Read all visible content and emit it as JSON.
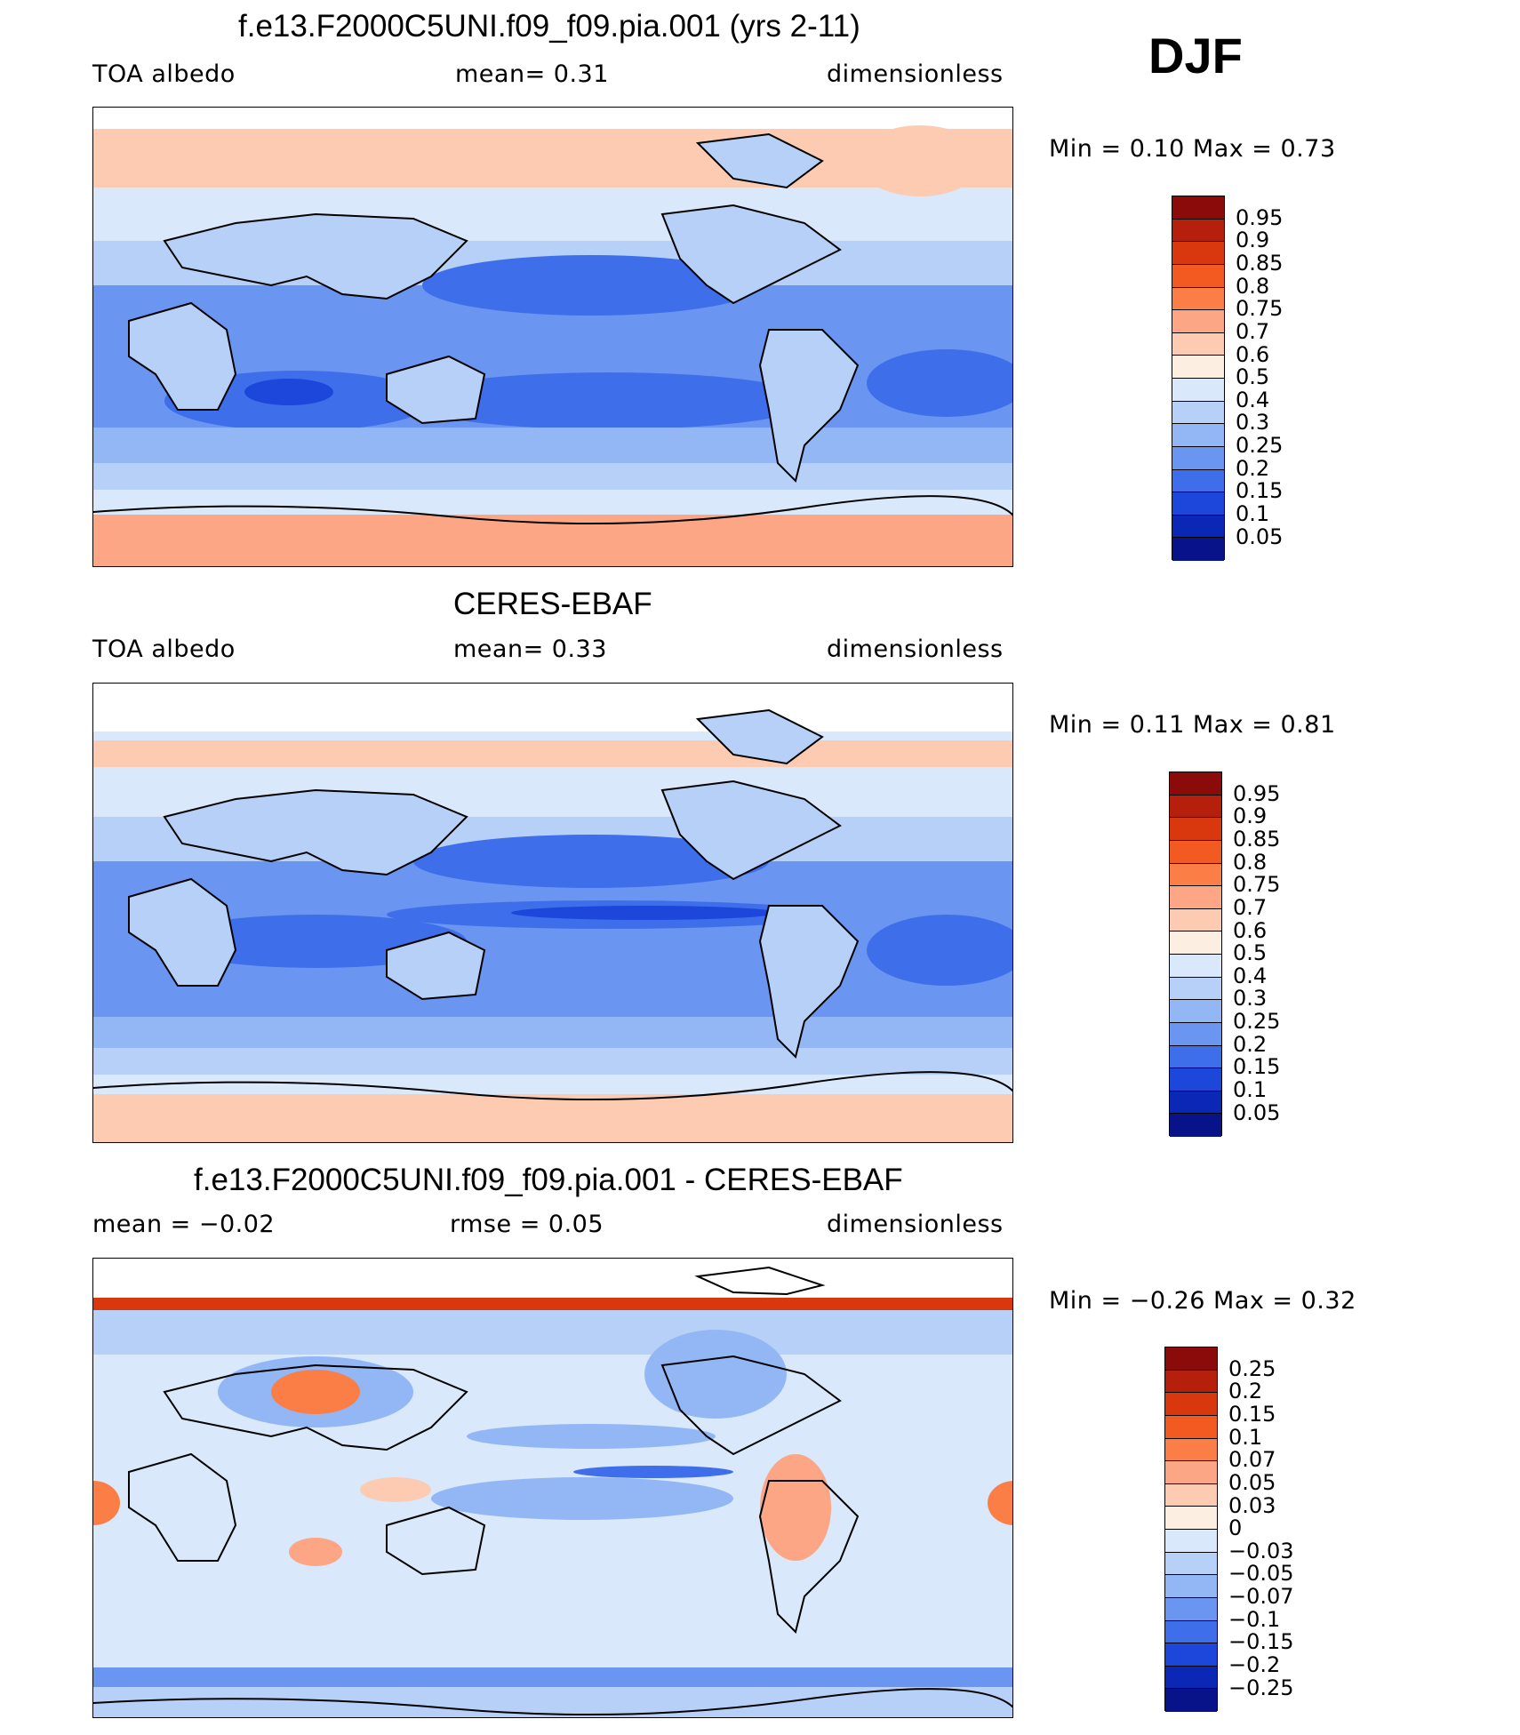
{
  "season": "DJF",
  "panels": [
    {
      "title": "f.e13.F2000C5UNI.f09_f09.pia.001 (yrs 2-11)",
      "left": "TOA  albedo",
      "center": "mean=    0.31",
      "right": "dimensionless",
      "minmax": "Min  =     0.10  Max  =     0.73",
      "colorbar_labels": [
        "0.95",
        "0.9",
        "0.85",
        "0.8",
        "0.75",
        "0.7",
        "0.6",
        "0.5",
        "0.4",
        "0.3",
        "0.25",
        "0.2",
        "0.15",
        "0.1",
        "0.05"
      ],
      "colorbar_colors": [
        "#8b0a0a",
        "#b51f0c",
        "#d9380f",
        "#f25a21",
        "#fb7e47",
        "#fca685",
        "#fdcab2",
        "#fdeee2",
        "#d9e8fa",
        "#b7d0f8",
        "#93b6f5",
        "#6a95f0",
        "#3f6eeb",
        "#1c47da",
        "#0b27b6",
        "#08138a"
      ]
    },
    {
      "title": "CERES-EBAF",
      "left": "TOA  albedo",
      "center": "mean=    0.33",
      "right": "dimensionless",
      "minmax": "Min  =     0.11  Max  =     0.81",
      "colorbar_labels": [
        "0.95",
        "0.9",
        "0.85",
        "0.8",
        "0.75",
        "0.7",
        "0.6",
        "0.5",
        "0.4",
        "0.3",
        "0.25",
        "0.2",
        "0.15",
        "0.1",
        "0.05"
      ],
      "colorbar_colors": [
        "#8b0a0a",
        "#b51f0c",
        "#d9380f",
        "#f25a21",
        "#fb7e47",
        "#fca685",
        "#fdcab2",
        "#fdeee2",
        "#d9e8fa",
        "#b7d0f8",
        "#93b6f5",
        "#6a95f0",
        "#3f6eeb",
        "#1c47da",
        "#0b27b6",
        "#08138a"
      ]
    },
    {
      "title": "f.e13.F2000C5UNI.f09_f09.pia.001 - CERES-EBAF",
      "left": "mean  =   −0.02",
      "center": "rmse  =    0.05",
      "right": "dimensionless",
      "minmax": "Min  =   −0.26  Max  =     0.32",
      "colorbar_labels": [
        "0.25",
        "0.2",
        "0.15",
        "0.1",
        "0.07",
        "0.05",
        "0.03",
        "0",
        "−0.03",
        "−0.05",
        "−0.07",
        "−0.1",
        "−0.15",
        "−0.2",
        "−0.25"
      ],
      "colorbar_colors": [
        "#8b0a0a",
        "#b51f0c",
        "#d9380f",
        "#f25a21",
        "#fb7e47",
        "#fca685",
        "#fdcab2",
        "#fdeee2",
        "#d9e8fa",
        "#b7d0f8",
        "#93b6f5",
        "#6a95f0",
        "#3f6eeb",
        "#1c47da",
        "#0b27b6",
        "#08138a"
      ]
    }
  ]
}
